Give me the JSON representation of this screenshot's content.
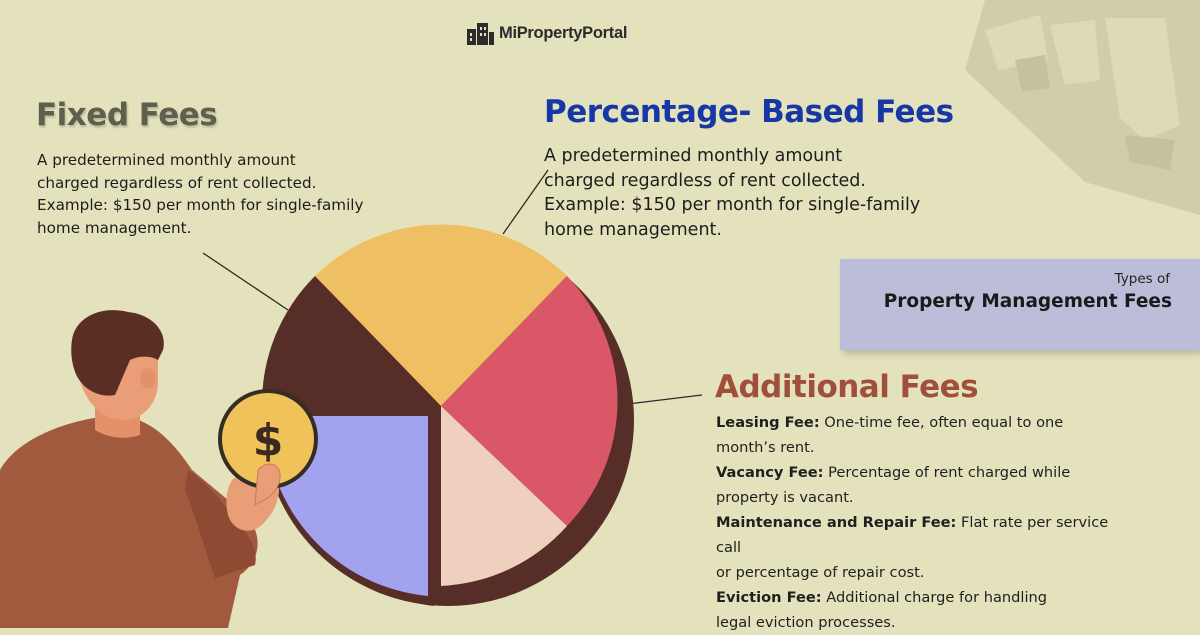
{
  "brand": {
    "name": "MiPropertyPortal"
  },
  "fixed": {
    "title": "Fixed Fees",
    "lines": [
      "A predetermined monthly amount",
      "charged regardless of rent collected.",
      "Example: $150 per month for single-family",
      "home management."
    ]
  },
  "percentage": {
    "title": "Percentage- Based Fees",
    "lines": [
      "A predetermined monthly amount",
      "charged regardless of rent collected.",
      "Example: $150 per month for single-family",
      "home management."
    ]
  },
  "types": {
    "label_small": "Types of",
    "label_big": "Property Management Fees"
  },
  "additional": {
    "title": "Additional Fees",
    "items": [
      {
        "name": "Leasing Fee:",
        "line1": " One-time fee, often equal to one",
        "line2": "month’s rent."
      },
      {
        "name": "Vacancy Fee:",
        "line1": " Percentage of rent charged while",
        "line2": "property is vacant."
      },
      {
        "name": "Maintenance and Repair Fee:",
        "line1": " Flat rate per service call",
        "line2": "or percentage of repair cost."
      },
      {
        "name": "Eviction Fee:",
        "line1": " Additional charge for handling",
        "line2": "legal eviction processes."
      }
    ]
  },
  "coin": {
    "symbol": "$"
  },
  "colors": {
    "background": "#e3e2bd",
    "slice_brown": "#572e27",
    "slice_yellow": "#eebf63",
    "slice_red": "#d95766",
    "slice_peach": "#efcfbd",
    "slice_lavender": "#a3a2ef",
    "coin": "#f0c25a",
    "jacket": "#a25a3f",
    "skin": "#ea9e77",
    "hair": "#5b2e24"
  }
}
